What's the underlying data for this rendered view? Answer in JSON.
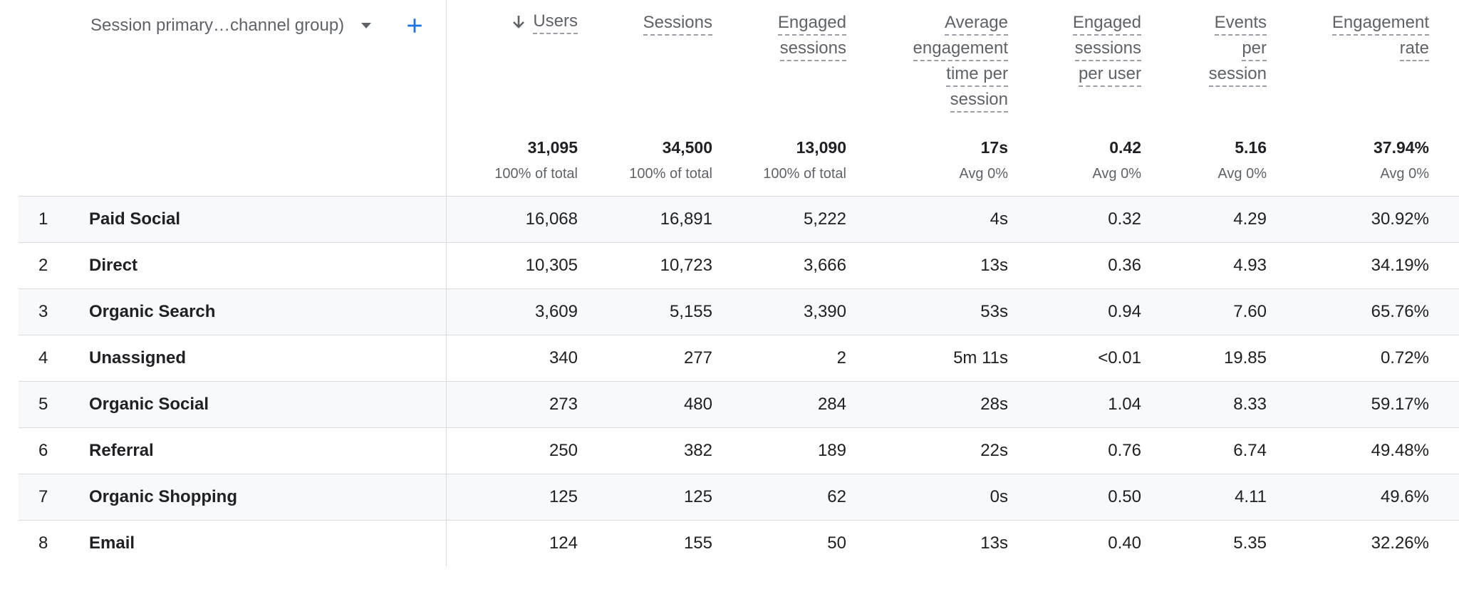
{
  "dimension": {
    "label": "Session primary…channel group)"
  },
  "columns": [
    {
      "key": "users",
      "lines": [
        "Users"
      ],
      "total": "31,095",
      "total_sub": "100% of total"
    },
    {
      "key": "sessions",
      "lines": [
        "Sessions"
      ],
      "total": "34,500",
      "total_sub": "100% of total"
    },
    {
      "key": "engaged_sessions",
      "lines": [
        "Engaged",
        "sessions"
      ],
      "total": "13,090",
      "total_sub": "100% of total"
    },
    {
      "key": "avg_engagement_time",
      "lines": [
        "Average",
        "engagement",
        "time per",
        "session"
      ],
      "total": "17s",
      "total_sub": "Avg 0%"
    },
    {
      "key": "engaged_sessions_per_user",
      "lines": [
        "Engaged",
        "sessions",
        "per user"
      ],
      "total": "0.42",
      "total_sub": "Avg 0%"
    },
    {
      "key": "events_per_session",
      "lines": [
        "Events",
        "per",
        "session"
      ],
      "total": "5.16",
      "total_sub": "Avg 0%"
    },
    {
      "key": "engagement_rate",
      "lines": [
        "Engagement",
        "rate"
      ],
      "total": "37.94%",
      "total_sub": "Avg 0%"
    }
  ],
  "rows": [
    {
      "index": "1",
      "name": "Paid Social",
      "values": [
        "16,068",
        "16,891",
        "5,222",
        "4s",
        "0.32",
        "4.29",
        "30.92%"
      ]
    },
    {
      "index": "2",
      "name": "Direct",
      "values": [
        "10,305",
        "10,723",
        "3,666",
        "13s",
        "0.36",
        "4.93",
        "34.19%"
      ]
    },
    {
      "index": "3",
      "name": "Organic Search",
      "values": [
        "3,609",
        "5,155",
        "3,390",
        "53s",
        "0.94",
        "7.60",
        "65.76%"
      ]
    },
    {
      "index": "4",
      "name": "Unassigned",
      "values": [
        "340",
        "277",
        "2",
        "5m 11s",
        "<0.01",
        "19.85",
        "0.72%"
      ]
    },
    {
      "index": "5",
      "name": "Organic Social",
      "values": [
        "273",
        "480",
        "284",
        "28s",
        "1.04",
        "8.33",
        "59.17%"
      ]
    },
    {
      "index": "6",
      "name": "Referral",
      "values": [
        "250",
        "382",
        "189",
        "22s",
        "0.76",
        "6.74",
        "49.48%"
      ]
    },
    {
      "index": "7",
      "name": "Organic Shopping",
      "values": [
        "125",
        "125",
        "62",
        "0s",
        "0.50",
        "4.11",
        "49.6%"
      ]
    },
    {
      "index": "8",
      "name": "Email",
      "values": [
        "124",
        "155",
        "50",
        "13s",
        "0.40",
        "5.35",
        "32.26%"
      ]
    }
  ],
  "icons": {
    "sort": "arrow-down-icon",
    "add": "plus-icon",
    "dropdown": "caret-down-icon"
  },
  "colors": {
    "accent": "#1a73e8",
    "muted": "#5f6368",
    "text": "#202124"
  }
}
